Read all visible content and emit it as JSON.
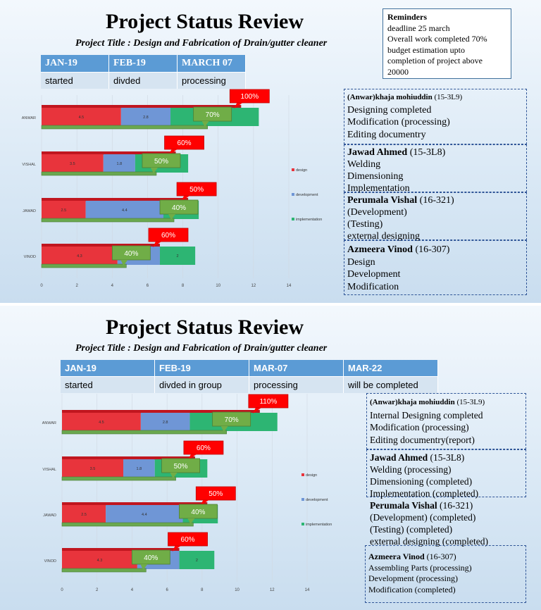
{
  "slide1": {
    "title": "Project Status Review",
    "subtitle": "Project Title : Design and Fabrication of Drain/gutter cleaner",
    "timeline": [
      {
        "header": "JAN-19",
        "status": "started"
      },
      {
        "header": "FEB-19",
        "status": "divded"
      },
      {
        "header": "MARCH 07",
        "status": "processing"
      }
    ],
    "reminders": {
      "heading": "Reminders",
      "lines": [
        "deadline 25 march",
        "Overall work completed 70%",
        "budget estimation upto",
        "completion of project above",
        "20000"
      ]
    },
    "members": [
      {
        "name": "(Anwar)khaja mohiuddin",
        "roll": " (15-3L9)",
        "tasks": [
          "Designing completed",
          "Modification (processing)",
          "Editing documentry"
        ]
      },
      {
        "name": "Jawad Ahmed",
        "roll": " (15-3L8)",
        "tasks": [
          "Welding",
          "Dimensioning",
          "Implementation"
        ]
      },
      {
        "name": "Perumala Vishal",
        "roll": " (16-321)",
        "tasks": [
          "(Development)",
          "(Testing)",
          "external designing"
        ]
      },
      {
        "name": "Azmeera Vinod",
        "roll": " (16-307)",
        "tasks": [
          "Design",
          "Development",
          "Modification"
        ]
      }
    ]
  },
  "slide2": {
    "title": "Project Status Review",
    "subtitle": "Project Title : Design and Fabrication of Drain/gutter cleaner",
    "timeline": [
      {
        "header": "JAN-19",
        "status": "started"
      },
      {
        "header": "FEB-19",
        "status": "divded in group"
      },
      {
        "header": "MAR-07",
        "status": "processing"
      },
      {
        "header": "MAR-22",
        "status": "will be completed"
      }
    ],
    "members": [
      {
        "name": "(Anwar)khaja mohiuddin",
        "roll": " (15-3L9)",
        "tasks": [
          "Internal Designing completed",
          "Modification (processing)",
          "Editing documentry(report)"
        ]
      },
      {
        "name": "Jawad Ahmed",
        "roll": " (15-3L8)",
        "tasks": [
          "Welding (processing)",
          "Dimensioning (completed)",
          "Implementation (completed)"
        ]
      },
      {
        "name": "Perumala Vishal",
        "roll": " (16-321)",
        "tasks": [
          "(Development) (completed)",
          "(Testing) (completed)",
          "external designing (completed)"
        ]
      },
      {
        "name": "Azmeera Vinod",
        "roll": " (16-307)",
        "tasks": [
          "Assembling Parts (processing)",
          "Development (processing)",
          "Modification (completed)"
        ]
      }
    ]
  },
  "chart_data": [
    {
      "type": "bar",
      "orientation": "horizontal",
      "stacked": true,
      "categories": [
        "ANWAR",
        "VISHAL",
        "JAWAD",
        "VINOD"
      ],
      "series": [
        {
          "name": "design",
          "values": [
            4.5,
            3.5,
            2.5,
            4.3
          ],
          "color": "#e8343c"
        },
        {
          "name": "development",
          "values": [
            2.8,
            1.8,
            4.4,
            2.4
          ],
          "color": "#6f96d6"
        },
        {
          "name": "implementation",
          "values": [
            5.0,
            3.0,
            2.0,
            2.0
          ],
          "color": "#2db573"
        }
      ],
      "target_bar_values": [
        11.3,
        7.6,
        8.3,
        6.7
      ],
      "progress_bar_values": [
        9.4,
        6.5,
        7.5,
        4.8
      ],
      "callouts_red": [
        "100%",
        "60%",
        "50%",
        "60%"
      ],
      "callouts_green": [
        "70%",
        "50%",
        "40%",
        "40%"
      ],
      "xlim": [
        0,
        14
      ],
      "xticks": [
        "0",
        "2",
        "4",
        "6",
        "8",
        "10",
        "12",
        "14"
      ],
      "legend_position": "right",
      "grid": true
    },
    {
      "type": "bar",
      "orientation": "horizontal",
      "stacked": true,
      "categories": [
        "ANWAR",
        "VISHAL",
        "JAWAD",
        "VINOD"
      ],
      "series": [
        {
          "name": "design",
          "values": [
            4.5,
            3.5,
            2.5,
            4.3
          ],
          "color": "#e8343c"
        },
        {
          "name": "development",
          "values": [
            2.8,
            1.8,
            4.4,
            2.4
          ],
          "color": "#6f96d6"
        },
        {
          "name": "implementation",
          "values": [
            5.0,
            3.0,
            2.0,
            2.0
          ],
          "color": "#2db573"
        }
      ],
      "target_bar_values": [
        11.3,
        7.6,
        8.3,
        6.7
      ],
      "progress_bar_values": [
        9.4,
        6.5,
        7.5,
        4.8
      ],
      "callouts_red": [
        "110%",
        "60%",
        "50%",
        "60%"
      ],
      "callouts_green": [
        "70%",
        "50%",
        "40%",
        "40%"
      ],
      "xlim": [
        0,
        14
      ],
      "xticks": [
        "0",
        "2",
        "4",
        "6",
        "8",
        "10",
        "12",
        "14"
      ],
      "legend_position": "right",
      "grid": true
    }
  ]
}
